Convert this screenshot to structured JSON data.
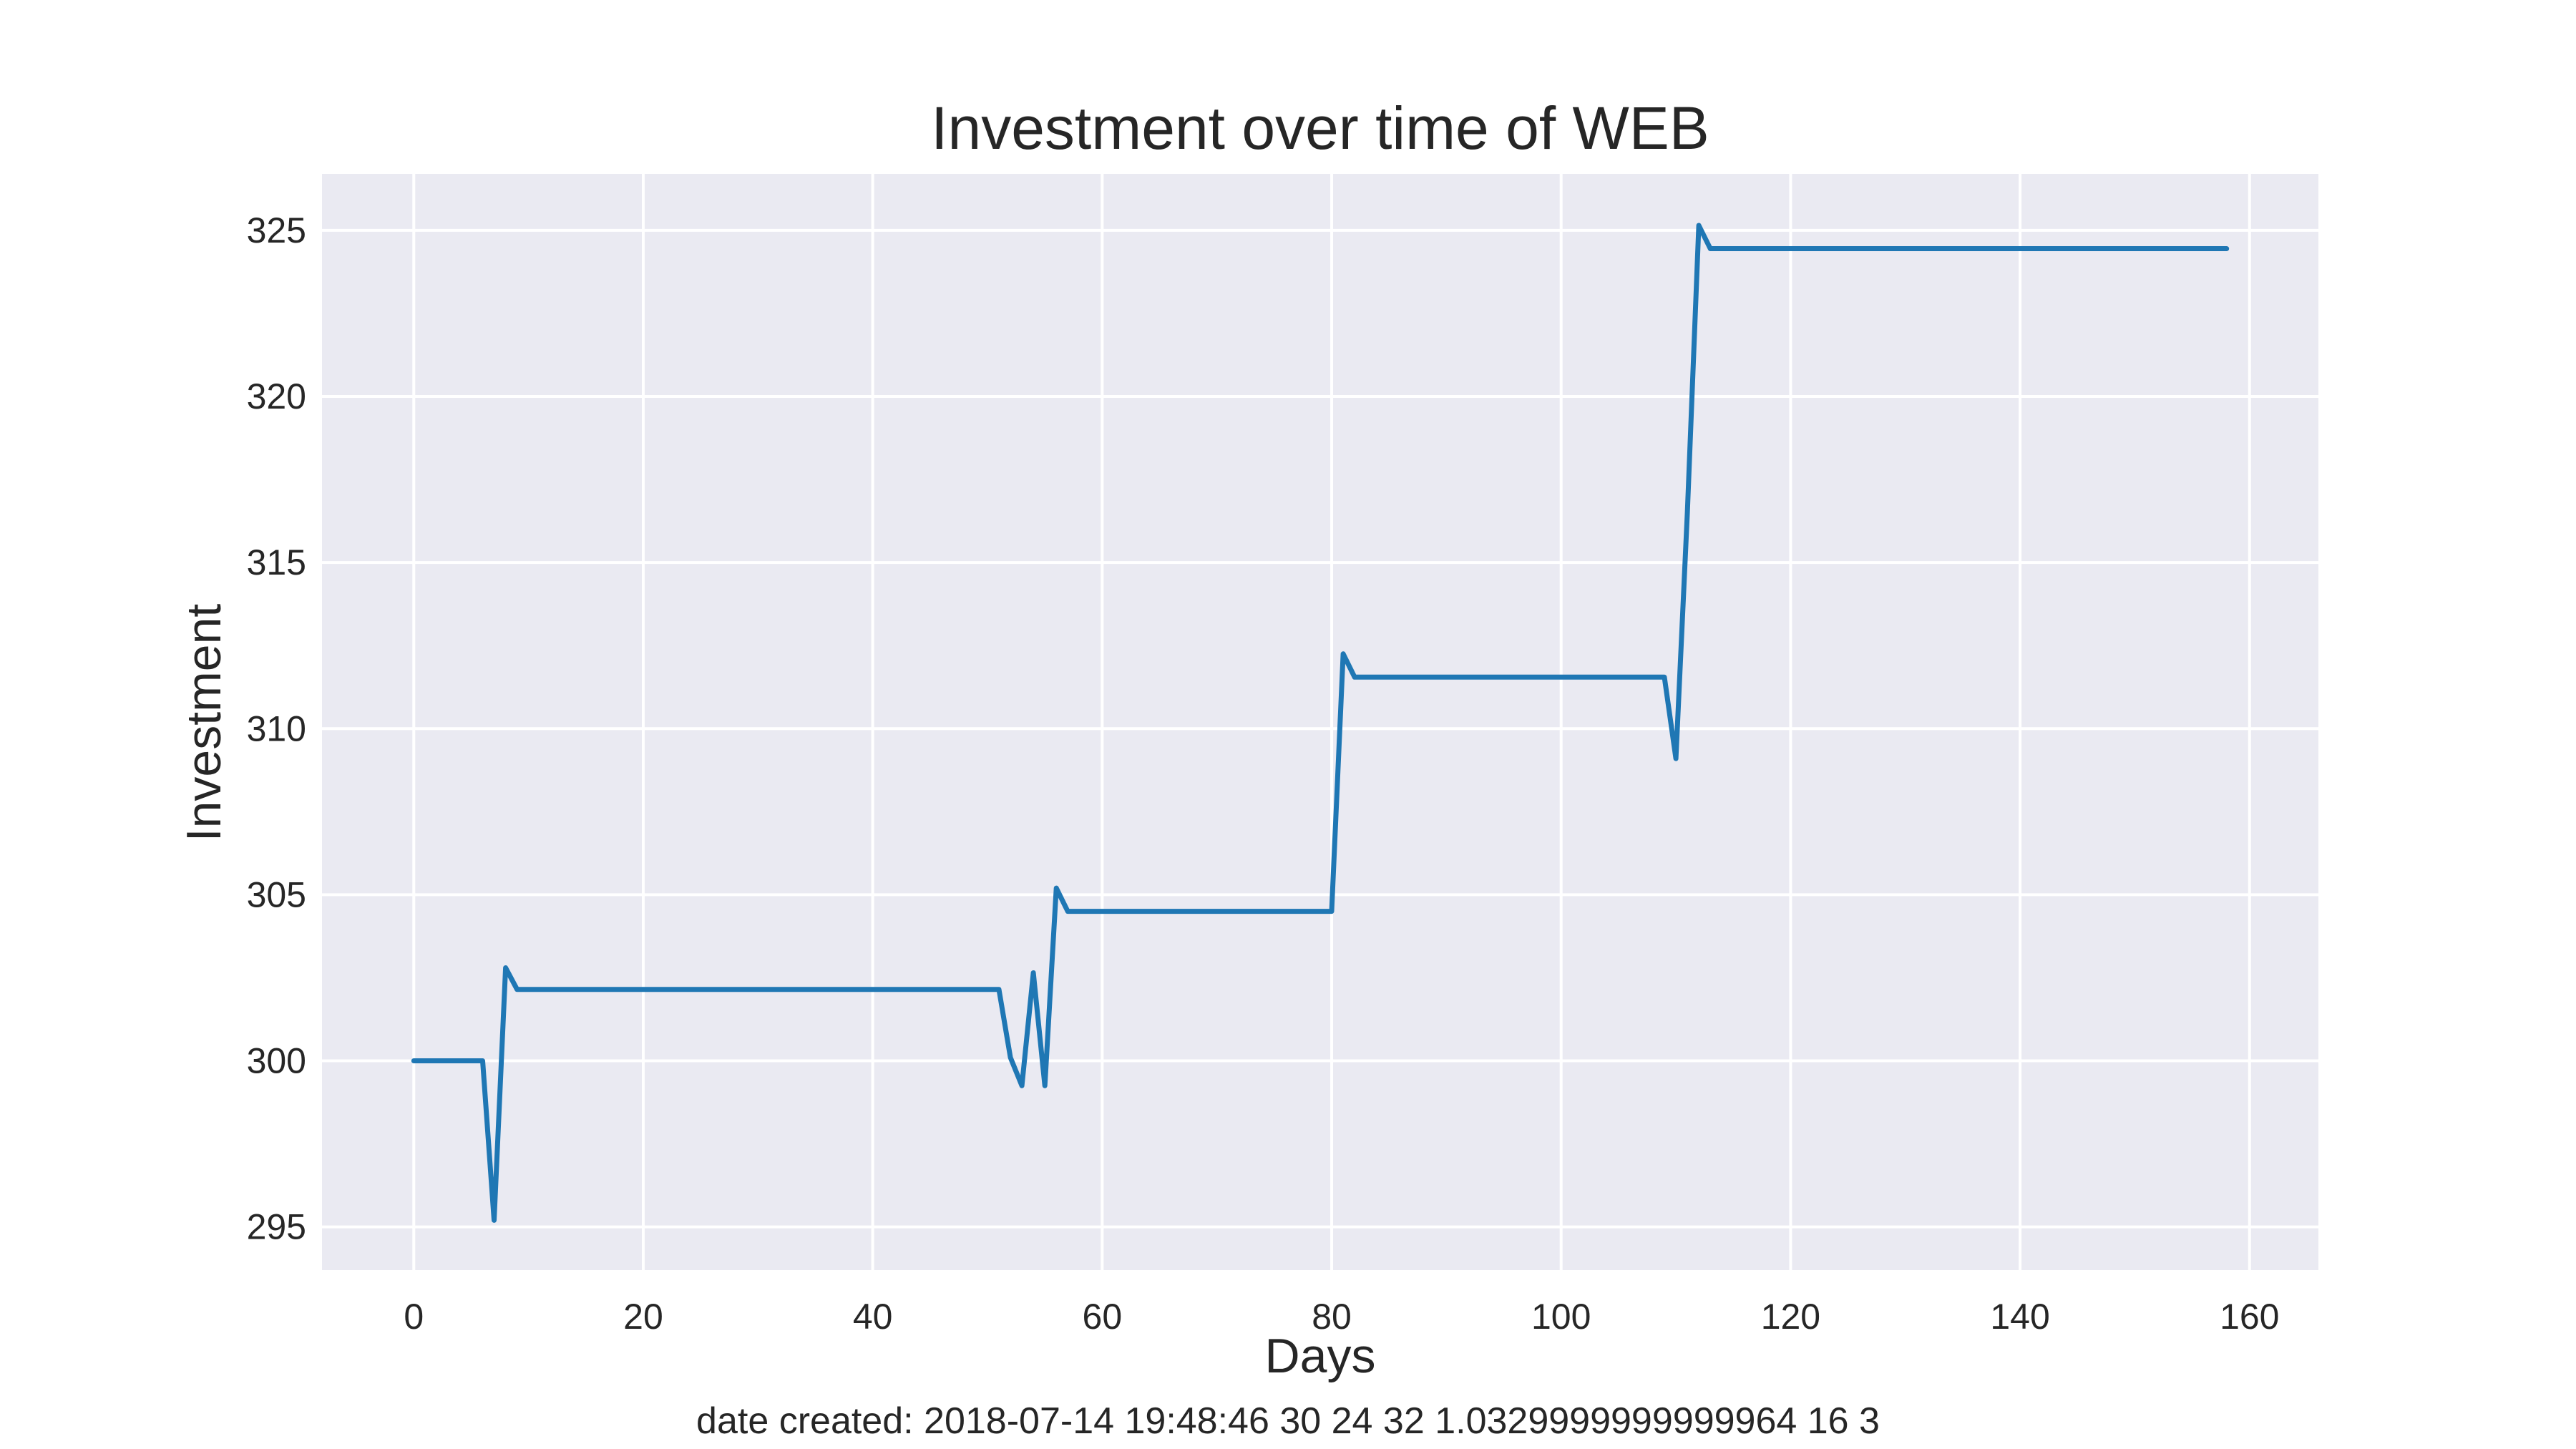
{
  "chart_data": {
    "type": "line",
    "title": "Investment over time of WEB",
    "xlabel": "Days",
    "ylabel": "Investment",
    "xlim": [
      -8,
      166
    ],
    "ylim": [
      293.7,
      326.7
    ],
    "xticks": [
      0,
      20,
      40,
      60,
      80,
      100,
      120,
      140,
      160
    ],
    "yticks": [
      295,
      300,
      305,
      310,
      315,
      320,
      325
    ],
    "grid": true,
    "legend": "none",
    "colors": {
      "background": "#eaeaf2",
      "grid": "#ffffff",
      "line": "#1f77b4",
      "text": "#262626"
    },
    "series": [
      {
        "x": [
          0,
          6,
          7,
          8,
          9,
          51,
          52,
          53,
          54,
          55,
          56,
          57,
          80,
          81,
          82,
          109,
          110,
          111,
          112,
          113,
          158
        ],
        "values": [
          300.0,
          300.0,
          295.2,
          302.8,
          302.15,
          302.15,
          300.1,
          299.25,
          302.65,
          299.25,
          305.2,
          304.5,
          304.5,
          312.25,
          311.55,
          311.55,
          309.1,
          316.5,
          325.15,
          324.45,
          324.45
        ]
      }
    ],
    "footer": "date created: 2018-07-14 19:48:46 30 24 32 1.0329999999999964 16 3"
  }
}
